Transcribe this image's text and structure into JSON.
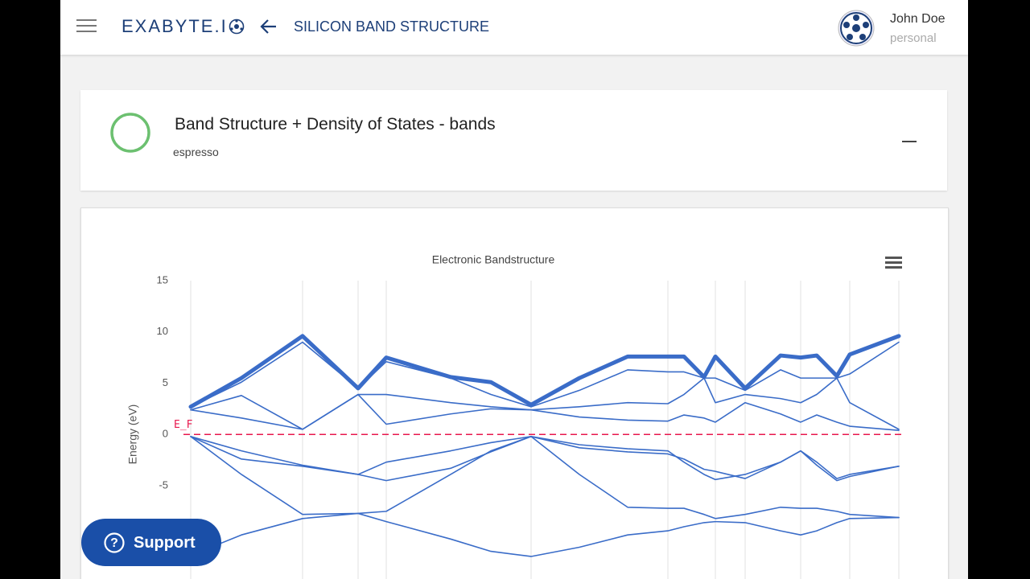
{
  "header": {
    "app_name": "EXABYTE.I",
    "page_title": "SILICON BAND STRUCTURE",
    "user_name": "John Doe",
    "account_type": "personal"
  },
  "unit_card": {
    "title": "Band Structure + Density of States - bands",
    "subtitle": "espresso"
  },
  "support_button": "Support",
  "chart_data": {
    "type": "line",
    "title": "Electronic Bandstructure",
    "y_label": "Energy (eV)",
    "fermi_label": "E_F",
    "fermi_level": 0,
    "fermi_color": "#e8174d",
    "ylim": [
      -15,
      15
    ],
    "yticks": [
      15,
      10,
      5,
      0,
      -5
    ],
    "xlim": [
      0,
      8.8
    ],
    "x_grid_lines": [
      0,
      1.39,
      2.08,
      2.43,
      4.23,
      5.93,
      6.52,
      6.89,
      7.58,
      8.19,
      8.8
    ],
    "x": [
      0,
      0.63,
      1.39,
      2.08,
      2.43,
      3.23,
      3.73,
      4.23,
      4.83,
      5.43,
      5.93,
      6.13,
      6.38,
      6.52,
      6.89,
      7.33,
      7.58,
      7.78,
      8.03,
      8.19,
      8.8
    ],
    "series": [
      {
        "color": "#3a6cc8",
        "line_width": 1.6,
        "values": [
          -11.8,
          -9.8,
          -8.2,
          -7.7,
          -8.5,
          -10.2,
          -11.4,
          -11.9,
          -11.0,
          -9.8,
          -9.4,
          -9.0,
          -8.6,
          -8.5,
          -8.6,
          -9.4,
          -9.8,
          -9.4,
          -8.6,
          -8.2,
          -8.1
        ]
      },
      {
        "color": "#3a6cc8",
        "line_width": 1.6,
        "values": [
          -0.2,
          -3.9,
          -7.8,
          -7.7,
          -7.5,
          -3.9,
          -1.6,
          -0.2,
          -3.9,
          -7.1,
          -7.2,
          -7.2,
          -7.8,
          -8.2,
          -7.8,
          -7.1,
          -7.2,
          -7.2,
          -7.5,
          -7.8,
          -8.1
        ]
      },
      {
        "color": "#3a6cc8",
        "line_width": 1.6,
        "values": [
          -0.2,
          -2.4,
          -3.1,
          -3.9,
          -4.5,
          -3.3,
          -1.7,
          -0.2,
          -1.3,
          -1.7,
          -1.9,
          -2.4,
          -3.4,
          -3.6,
          -4.3,
          -2.7,
          -1.6,
          -3.0,
          -4.5,
          -4.1,
          -3.1
        ]
      },
      {
        "color": "#3a6cc8",
        "line_width": 1.6,
        "values": [
          -0.2,
          -1.6,
          -3.0,
          -3.9,
          -2.7,
          -1.6,
          -0.8,
          -0.2,
          -1.0,
          -1.4,
          -1.6,
          -2.7,
          -3.9,
          -4.4,
          -3.9,
          -2.7,
          -1.6,
          -2.7,
          -4.3,
          -3.9,
          -3.1
        ]
      },
      {
        "color": "#3a6cc8",
        "line_width": 1.6,
        "values": [
          2.4,
          1.6,
          0.5,
          3.9,
          1.0,
          2.0,
          2.5,
          2.4,
          1.7,
          1.4,
          1.3,
          1.9,
          1.6,
          1.2,
          3.1,
          2.0,
          1.2,
          1.9,
          1.2,
          0.8,
          0.4
        ]
      },
      {
        "color": "#3a6cc8",
        "line_width": 1.6,
        "values": [
          2.4,
          3.8,
          0.5,
          3.9,
          3.9,
          3.1,
          2.7,
          2.4,
          2.7,
          3.1,
          3.0,
          3.9,
          5.5,
          3.1,
          3.9,
          3.5,
          3.1,
          3.9,
          5.5,
          3.1,
          0.5
        ]
      },
      {
        "color": "#3a6cc8",
        "line_width": 1.6,
        "values": [
          2.7,
          5.1,
          9.0,
          4.5,
          7.1,
          5.5,
          3.9,
          2.7,
          4.3,
          6.3,
          6.1,
          6.1,
          5.5,
          5.5,
          4.3,
          6.3,
          5.5,
          5.5,
          5.5,
          5.9,
          9.0
        ]
      },
      {
        "color": "#3a6cc8",
        "line_width": 5,
        "values": [
          2.7,
          5.5,
          9.6,
          4.5,
          7.5,
          5.6,
          5.1,
          2.9,
          5.5,
          7.6,
          7.6,
          7.6,
          5.6,
          7.6,
          4.5,
          7.7,
          7.5,
          7.7,
          5.7,
          7.8,
          9.6
        ]
      }
    ]
  }
}
